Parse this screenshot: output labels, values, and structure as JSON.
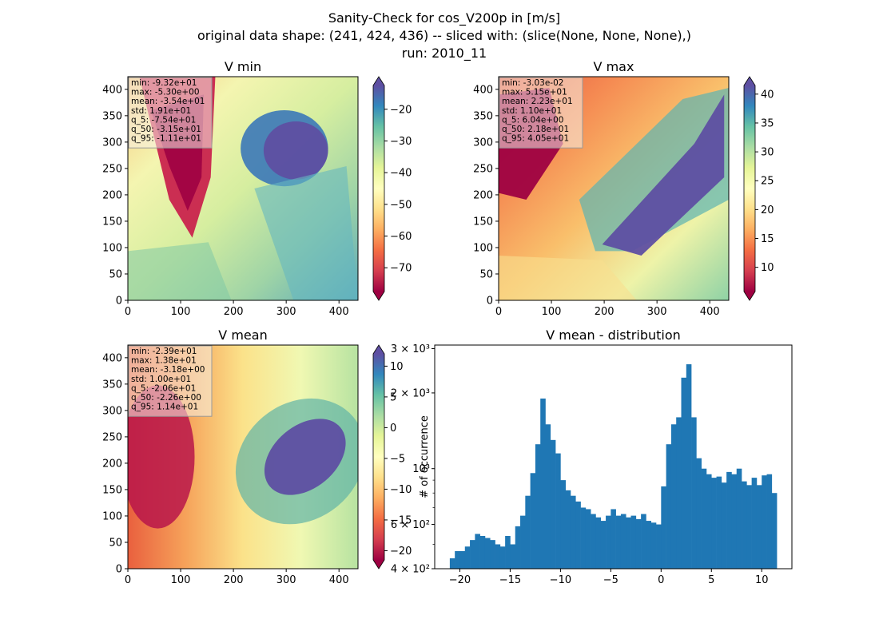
{
  "figure": {
    "title_lines": [
      "Sanity-Check for cos_V200p in [m/s]",
      "original data shape: (241, 424, 436) -- sliced with: (slice(None, None, None),)",
      "run: 2010_11"
    ]
  },
  "chart_data": [
    {
      "type": "heatmap",
      "title": "V min",
      "colormap": "Spectral",
      "xlim": [
        0,
        436
      ],
      "ylim": [
        0,
        424
      ],
      "xticks": [
        "0",
        "100",
        "200",
        "300",
        "400"
      ],
      "yticks": [
        "0",
        "50",
        "100",
        "150",
        "200",
        "250",
        "300",
        "350",
        "400"
      ],
      "colorbar": {
        "range": [
          -77.5,
          -12.5
        ],
        "ticks": [
          "−70",
          "−60",
          "−50",
          "−40",
          "−30",
          "−20"
        ],
        "extend": "both"
      },
      "stats": [
        "min: -9.32e+01",
        "max: -5.30e+00",
        "mean: -3.54e+01",
        "std: 1.91e+01",
        "q_5: -7.54e+01",
        "q_50: -3.15e+01",
        "q_95: -1.11e+01"
      ]
    },
    {
      "type": "heatmap",
      "title": "V max",
      "colormap": "Spectral",
      "xlim": [
        0,
        436
      ],
      "ylim": [
        0,
        424
      ],
      "xticks": [
        "0",
        "100",
        "200",
        "300",
        "400"
      ],
      "yticks": [
        "0",
        "50",
        "100",
        "150",
        "200",
        "250",
        "300",
        "350",
        "400"
      ],
      "colorbar": {
        "range": [
          5.8,
          41.5
        ],
        "ticks": [
          "10",
          "15",
          "20",
          "25",
          "30",
          "35",
          "40"
        ],
        "extend": "both"
      },
      "stats": [
        "min: -3.03e-02",
        "max: 5.15e+01",
        "mean: 2.23e+01",
        "std: 1.10e+01",
        "q_5: 6.04e+00",
        "q_50: 2.18e+01",
        "q_95: 4.05e+01"
      ]
    },
    {
      "type": "heatmap",
      "title": "V mean",
      "colormap": "Spectral",
      "xlim": [
        0,
        436
      ],
      "ylim": [
        0,
        424
      ],
      "xticks": [
        "0",
        "100",
        "200",
        "300",
        "400"
      ],
      "yticks": [
        "0",
        "50",
        "100",
        "150",
        "200",
        "250",
        "300",
        "350",
        "400"
      ],
      "colorbar": {
        "range": [
          -21.5,
          12
        ],
        "ticks": [
          "−20",
          "−15",
          "−10",
          "−5",
          "0",
          "5",
          "10"
        ],
        "extend": "both"
      },
      "stats": [
        "min: -2.39e+01",
        "max: 1.38e+01",
        "mean: -3.18e+00",
        "std: 1.00e+01",
        "q_5: -2.06e+01",
        "q_50: -2.26e+00",
        "q_95: 1.14e+01"
      ]
    },
    {
      "type": "bar",
      "title": "V mean - distribution",
      "ylabel": "# of occurrence",
      "yscale": "log",
      "color": "#1f77b4",
      "xlim": [
        -22.5,
        13
      ],
      "ylim": [
        400,
        3100
      ],
      "xticks": [
        "−20",
        "−15",
        "−10",
        "−5",
        "0",
        "5",
        "10"
      ],
      "ytick_labels": [
        "4 × 10²",
        "6 × 10²",
        "10³",
        "2 × 10³",
        "3 × 10³"
      ],
      "x": [
        -20.75,
        -20.25,
        -19.75,
        -19.25,
        -18.75,
        -18.25,
        -17.75,
        -17.25,
        -16.75,
        -16.25,
        -15.75,
        -15.25,
        -14.75,
        -14.25,
        -13.75,
        -13.25,
        -12.75,
        -12.25,
        -11.75,
        -11.25,
        -10.75,
        -10.25,
        -9.75,
        -9.25,
        -8.75,
        -8.25,
        -7.75,
        -7.25,
        -6.75,
        -6.25,
        -5.75,
        -5.25,
        -4.75,
        -4.25,
        -3.75,
        -3.25,
        -2.75,
        -2.25,
        -1.75,
        -1.25,
        -0.75,
        -0.25,
        0.25,
        0.75,
        1.25,
        1.75,
        2.25,
        2.75,
        3.25,
        3.75,
        4.25,
        4.75,
        5.25,
        5.75,
        6.25,
        6.75,
        7.25,
        7.75,
        8.25,
        8.75,
        9.25,
        9.75,
        10.25,
        10.75,
        11.25
      ],
      "values": [
        440,
        470,
        470,
        490,
        520,
        550,
        540,
        530,
        520,
        500,
        490,
        540,
        500,
        590,
        650,
        780,
        960,
        1250,
        1900,
        1500,
        1300,
        1150,
        900,
        820,
        780,
        740,
        700,
        690,
        660,
        640,
        620,
        650,
        690,
        650,
        660,
        640,
        650,
        630,
        660,
        620,
        610,
        600,
        850,
        1250,
        1500,
        1600,
        2300,
        2600,
        1600,
        1100,
        1000,
        950,
        920,
        930,
        880,
        970,
        950,
        1000,
        890,
        860,
        920,
        860,
        940,
        950,
        800
      ]
    }
  ]
}
